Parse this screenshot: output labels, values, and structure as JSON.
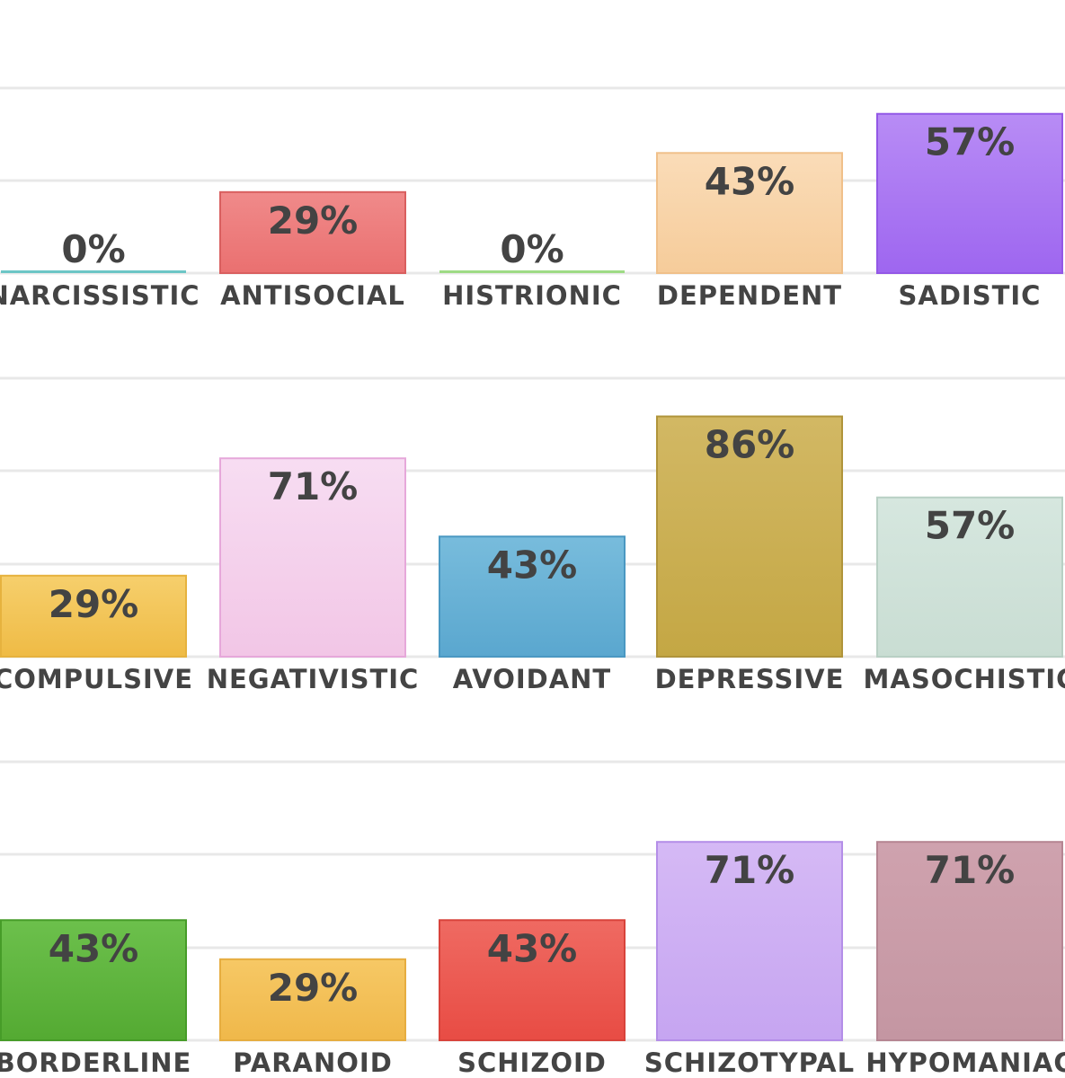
{
  "chart_data": [
    {
      "type": "bar",
      "title": "",
      "xlabel": "",
      "ylabel": "",
      "ylim": [
        0,
        100
      ],
      "categories": [
        "NARCISSISTIC",
        "ANTISOCIAL",
        "HISTRIONIC",
        "DEPENDENT",
        "SADISTIC"
      ],
      "values": [
        0,
        29,
        0,
        43,
        57
      ],
      "value_labels": [
        "0%",
        "29%",
        "0%",
        "43%",
        "57%"
      ],
      "colors": [
        {
          "top": "#8fd6d6",
          "bottom": "#6cc6c6",
          "stroke": "#5ab8b8"
        },
        {
          "top": "#f08a8a",
          "bottom": "#ea7070",
          "stroke": "#d95f5f"
        },
        {
          "top": "#b5e6a0",
          "bottom": "#9edb85",
          "stroke": "#8ccf72"
        },
        {
          "top": "#fadcb8",
          "bottom": "#f6cc9a",
          "stroke": "#f0c08a"
        },
        {
          "top": "#b88cf5",
          "bottom": "#9e66f0",
          "stroke": "#9358e6"
        }
      ]
    },
    {
      "type": "bar",
      "title": "",
      "xlabel": "",
      "ylabel": "",
      "ylim": [
        0,
        100
      ],
      "categories": [
        "COMPULSIVE",
        "NEGATIVISTIC",
        "AVOIDANT",
        "DEPRESSIVE",
        "MASOCHISTIC"
      ],
      "values": [
        29,
        71,
        43,
        86,
        57
      ],
      "value_labels": [
        "29%",
        "71%",
        "43%",
        "86%",
        "57%"
      ],
      "colors": [
        {
          "top": "#f6cf6c",
          "bottom": "#efbb45",
          "stroke": "#e6b23e"
        },
        {
          "top": "#f7ddf2",
          "bottom": "#f2c6e6",
          "stroke": "#e6a8da"
        },
        {
          "top": "#78bcdc",
          "bottom": "#5aa7cf",
          "stroke": "#4a98c2"
        },
        {
          "top": "#d2b864",
          "bottom": "#c4a744",
          "stroke": "#b0943a"
        },
        {
          "top": "#d6e7df",
          "bottom": "#c9ddd3",
          "stroke": "#b8d0c4"
        }
      ]
    },
    {
      "type": "bar",
      "title": "",
      "xlabel": "",
      "ylabel": "",
      "ylim": [
        0,
        100
      ],
      "categories": [
        "BORDERLINE",
        "PARANOID",
        "SCHIZOID",
        "SCHIZOTYPAL",
        "HYPOMANIAC"
      ],
      "values": [
        43,
        29,
        43,
        71,
        71
      ],
      "value_labels": [
        "43%",
        "29%",
        "43%",
        "71%",
        "71%"
      ],
      "colors": [
        {
          "top": "#6cc04c",
          "bottom": "#54aa32",
          "stroke": "#469c28"
        },
        {
          "top": "#f6c865",
          "bottom": "#f0b84a",
          "stroke": "#e6ad40"
        },
        {
          "top": "#ef6a62",
          "bottom": "#e84c44",
          "stroke": "#d8433b"
        },
        {
          "top": "#d5b9f5",
          "bottom": "#c6a5f1",
          "stroke": "#b48ee8"
        },
        {
          "top": "#cfa2ae",
          "bottom": "#c496a2",
          "stroke": "#b58592"
        }
      ]
    }
  ]
}
